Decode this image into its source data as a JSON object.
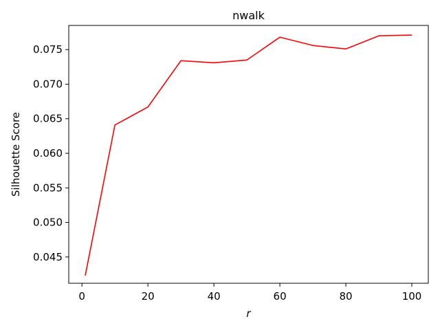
{
  "chart_data": {
    "type": "line",
    "title": "nwalk",
    "xlabel": "r",
    "ylabel": "Silhouette Score",
    "xlim": [
      -4,
      105
    ],
    "ylim": [
      0.0412,
      0.0785
    ],
    "xticks": [
      0,
      20,
      40,
      60,
      80,
      100
    ],
    "yticks": [
      0.045,
      0.05,
      0.055,
      0.06,
      0.065,
      0.07,
      0.075
    ],
    "ytick_labels": [
      "0.045",
      "0.050",
      "0.055",
      "0.060",
      "0.065",
      "0.070",
      "0.075"
    ],
    "grid": false,
    "series": [
      {
        "color": "#ff0000",
        "x": [
          1,
          10,
          20,
          30,
          40,
          50,
          60,
          70,
          80,
          90,
          100
        ],
        "y": [
          0.0423,
          0.0641,
          0.0667,
          0.0734,
          0.0731,
          0.0735,
          0.0768,
          0.0756,
          0.0751,
          0.077,
          0.0771
        ]
      }
    ]
  }
}
